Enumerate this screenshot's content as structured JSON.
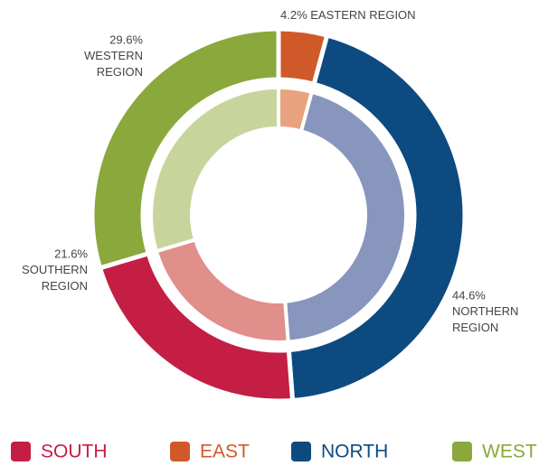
{
  "chart_data": {
    "type": "donut",
    "categories": [
      "EASTERN REGION",
      "NORTHERN REGION",
      "SOUTHERN REGION",
      "WESTERN REGION"
    ],
    "values": [
      4.2,
      44.6,
      21.6,
      29.6
    ],
    "value_labels": [
      "4.2%",
      "44.6%",
      "21.6%",
      "29.6%"
    ],
    "colors": [
      "#d0592a",
      "#0d4a80",
      "#c41e45",
      "#8aa83b"
    ],
    "inner_colors": [
      "#e9a27e",
      "#8896bd",
      "#e08f8b",
      "#c7d59d"
    ],
    "legend": [
      {
        "name": "SOUTH",
        "color": "#c41e45"
      },
      {
        "name": "EAST",
        "color": "#d0592a"
      },
      {
        "name": "NORTH",
        "color": "#0d4a80"
      },
      {
        "name": "WEST",
        "color": "#8aa83b"
      }
    ]
  }
}
